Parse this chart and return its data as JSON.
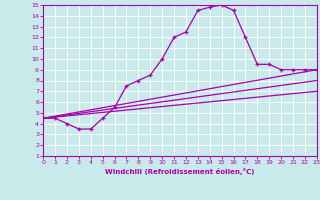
{
  "background_color": "#c8eaea",
  "grid_color": "#ffffff",
  "line_color": "#aa00aa",
  "xlabel": "Windchill (Refroidissement éolien,°C)",
  "xlim": [
    0,
    23
  ],
  "ylim": [
    1,
    15
  ],
  "xticks": [
    0,
    1,
    2,
    3,
    4,
    5,
    6,
    7,
    8,
    9,
    10,
    11,
    12,
    13,
    14,
    15,
    16,
    17,
    18,
    19,
    20,
    21,
    22,
    23
  ],
  "yticks": [
    1,
    2,
    3,
    4,
    5,
    6,
    7,
    8,
    9,
    10,
    11,
    12,
    13,
    14,
    15
  ],
  "line1_x": [
    0,
    1,
    2,
    3,
    4,
    5,
    6,
    7,
    8,
    9,
    10,
    11,
    12,
    13,
    14,
    15,
    16,
    17,
    18,
    19,
    20,
    21,
    22,
    23
  ],
  "line1_y": [
    4.5,
    4.5,
    4.0,
    3.5,
    3.5,
    4.5,
    5.5,
    7.5,
    8.0,
    8.5,
    10.0,
    12.0,
    12.5,
    14.5,
    14.8,
    15.0,
    14.5,
    12.0,
    9.5,
    9.5,
    9.0,
    9.0,
    9.0,
    9.0
  ],
  "line2_x": [
    0,
    23
  ],
  "line2_y": [
    4.5,
    9.0
  ],
  "line3_x": [
    0,
    23
  ],
  "line3_y": [
    4.5,
    8.0
  ],
  "line4_x": [
    0,
    23
  ],
  "line4_y": [
    4.5,
    7.0
  ]
}
